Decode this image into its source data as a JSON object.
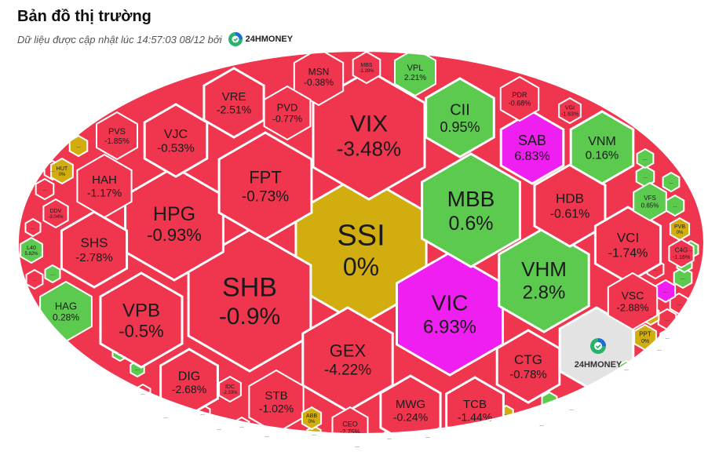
{
  "header": {
    "title": "Bản đồ thị trường",
    "subtitle": "Dữ liệu được cập nhật lúc 14:57:03 08/12 bởi",
    "brand": "24HMONEY"
  },
  "colors": {
    "down": "#f0354f",
    "up": "#5cc94f",
    "ref": "#d1ad0f",
    "ceiling": "#ee1ff0",
    "neutral": "#e3e3e3",
    "border": "#ffffff"
  },
  "watermark": {
    "brand": "24HMONEY"
  },
  "chart_data": {
    "type": "treemap",
    "title": "Bản đồ thị trường",
    "cells": [
      {
        "ticker": "SSI",
        "change": "0%",
        "status": "ref"
      },
      {
        "ticker": "SHB",
        "change": "-0.9%",
        "status": "down"
      },
      {
        "ticker": "VIX",
        "change": "-3.48%",
        "status": "down"
      },
      {
        "ticker": "VIC",
        "change": "6.93%",
        "status": "ceiling"
      },
      {
        "ticker": "MBB",
        "change": "0.6%",
        "status": "up"
      },
      {
        "ticker": "VHM",
        "change": "2.8%",
        "status": "up"
      },
      {
        "ticker": "HPG",
        "change": "-0.93%",
        "status": "down"
      },
      {
        "ticker": "FPT",
        "change": "-0.73%",
        "status": "down"
      },
      {
        "ticker": "VPB",
        "change": "-0.5%",
        "status": "down"
      },
      {
        "ticker": "GEX",
        "change": "-4.22%",
        "status": "down"
      },
      {
        "ticker": "CII",
        "change": "0.95%",
        "status": "up"
      },
      {
        "ticker": "SAB",
        "change": "6.83%",
        "status": "ceiling"
      },
      {
        "ticker": "VNM",
        "change": "0.16%",
        "status": "up"
      },
      {
        "ticker": "HDB",
        "change": "-0.61%",
        "status": "down"
      },
      {
        "ticker": "VCI",
        "change": "-1.74%",
        "status": "down"
      },
      {
        "ticker": "VSC",
        "change": "-2.88%",
        "status": "down"
      },
      {
        "ticker": "CTG",
        "change": "-0.78%",
        "status": "down"
      },
      {
        "ticker": "TCB",
        "change": "-1.44%",
        "status": "down"
      },
      {
        "ticker": "MWG",
        "change": "-0.24%",
        "status": "down"
      },
      {
        "ticker": "STB",
        "change": "-1.02%",
        "status": "down"
      },
      {
        "ticker": "DIG",
        "change": "-2.68%",
        "status": "down"
      },
      {
        "ticker": "SHS",
        "change": "-2.78%",
        "status": "down"
      },
      {
        "ticker": "HAH",
        "change": "-1.17%",
        "status": "down"
      },
      {
        "ticker": "VJC",
        "change": "-0.53%",
        "status": "down"
      },
      {
        "ticker": "VRE",
        "change": "-2.51%",
        "status": "down"
      },
      {
        "ticker": "PVD",
        "change": "-0.77%",
        "status": "down"
      },
      {
        "ticker": "MSN",
        "change": "-0.38%",
        "status": "down"
      },
      {
        "ticker": "PVS",
        "change": "-1.85%",
        "status": "down"
      },
      {
        "ticker": "HAG",
        "change": "0.28%",
        "status": "up"
      },
      {
        "ticker": "VPL",
        "change": "2.21%",
        "status": "up"
      },
      {
        "ticker": "PDR",
        "change": "-0.68%",
        "status": "down"
      },
      {
        "ticker": "VGI",
        "change": "-1.63%",
        "status": "down"
      },
      {
        "ticker": "MBS",
        "change": "-1.39%",
        "status": "down"
      },
      {
        "ticker": "VFS",
        "change": "0.65%",
        "status": "up"
      },
      {
        "ticker": "PVB",
        "change": "0%",
        "status": "ref"
      },
      {
        "ticker": "C4G",
        "change": "-1.16%",
        "status": "down"
      },
      {
        "ticker": "PPT",
        "change": "0%",
        "status": "ref"
      },
      {
        "ticker": "HUT",
        "change": "0%",
        "status": "ref"
      },
      {
        "ticker": "DDV",
        "change": "-3.04%",
        "status": "down"
      },
      {
        "ticker": "L40",
        "change": "5.82%",
        "status": "up"
      },
      {
        "ticker": "IDC",
        "change": "-2.33%",
        "status": "down"
      },
      {
        "ticker": "CEO",
        "change": "-2.75%",
        "status": "down"
      },
      {
        "ticker": "ABB",
        "change": "0%",
        "status": "ref"
      }
    ],
    "small_cells": [
      {
        "label": "...",
        "status": "down"
      },
      {
        "label": "...",
        "status": "down"
      },
      {
        "label": "...",
        "status": "ref"
      },
      {
        "label": "...",
        "status": "up"
      },
      {
        "label": "...",
        "status": "up"
      },
      {
        "label": "...",
        "status": "up"
      },
      {
        "label": "...",
        "status": "down"
      },
      {
        "label": "...",
        "status": "down"
      },
      {
        "label": "...",
        "status": "up"
      },
      {
        "label": "...",
        "status": "up"
      },
      {
        "label": "...",
        "status": "ceiling"
      },
      {
        "label": "...",
        "status": "ref"
      },
      {
        "label": "...",
        "status": "down"
      },
      {
        "label": "...",
        "status": "up"
      },
      {
        "label": "...",
        "status": "up"
      },
      {
        "label": "...",
        "status": "down"
      },
      {
        "label": "...",
        "status": "down"
      },
      {
        "label": "...",
        "status": "up"
      },
      {
        "label": "...",
        "status": "down"
      },
      {
        "label": "...",
        "status": "ref"
      },
      {
        "label": "...",
        "status": "down"
      },
      {
        "label": "...",
        "status": "up"
      },
      {
        "label": "...",
        "status": "up"
      },
      {
        "label": "...",
        "status": "down"
      },
      {
        "label": "...",
        "status": "up"
      },
      {
        "label": "...",
        "status": "down"
      },
      {
        "label": "...",
        "status": "ref"
      },
      {
        "label": "...",
        "status": "up"
      },
      {
        "label": "...",
        "status": "up"
      },
      {
        "label": "...",
        "status": "up"
      },
      {
        "label": "...",
        "status": "ref"
      },
      {
        "label": "...",
        "status": "up"
      },
      {
        "label": "...",
        "status": "up"
      },
      {
        "label": "...",
        "status": "ref"
      },
      {
        "label": "...",
        "status": "up"
      },
      {
        "label": "...",
        "status": "up"
      },
      {
        "label": "...",
        "status": "down"
      }
    ]
  }
}
